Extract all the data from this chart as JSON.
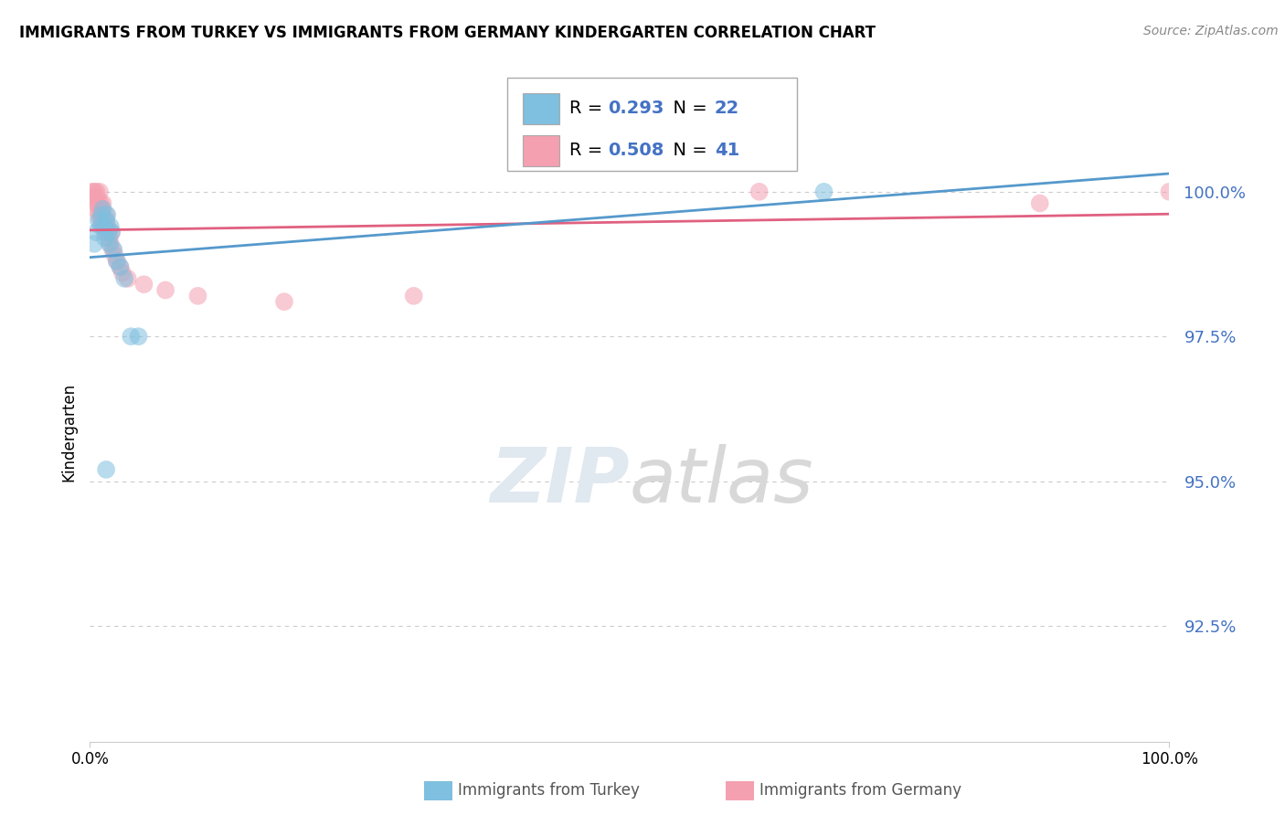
{
  "title": "IMMIGRANTS FROM TURKEY VS IMMIGRANTS FROM GERMANY KINDERGARTEN CORRELATION CHART",
  "source": "Source: ZipAtlas.com",
  "ylabel": "Kindergarten",
  "xlim": [
    0.0,
    100.0
  ],
  "ylim": [
    90.5,
    101.2
  ],
  "yticks": [
    92.5,
    95.0,
    97.5,
    100.0
  ],
  "ytick_labels": [
    "92.5%",
    "95.0%",
    "97.5%",
    "100.0%"
  ],
  "legend_blue_label": "Immigrants from Turkey",
  "legend_pink_label": "Immigrants from Germany",
  "R_blue": "0.293",
  "N_blue": "22",
  "R_pink": "0.508",
  "N_pink": "41",
  "blue_color": "#7fbfdf",
  "pink_color": "#f4a0b0",
  "blue_line_color": "#5599cc",
  "pink_line_color": "#e06080",
  "watermark_zip": "ZIP",
  "watermark_atlas": "atlas",
  "turkey_x": [
    0.4,
    0.6,
    0.8,
    1.0,
    1.1,
    1.2,
    1.3,
    1.4,
    1.5,
    1.6,
    1.7,
    1.8,
    1.9,
    2.0,
    2.2,
    2.5,
    2.8,
    3.2,
    3.8,
    4.5,
    1.5,
    68.0
  ],
  "turkey_y": [
    99.1,
    99.3,
    99.5,
    99.4,
    99.6,
    99.7,
    99.4,
    99.2,
    99.5,
    99.6,
    99.3,
    99.1,
    99.4,
    99.3,
    99.0,
    98.8,
    98.7,
    98.5,
    97.5,
    97.5,
    95.2,
    100.0
  ],
  "germany_x": [
    0.2,
    0.3,
    0.4,
    0.5,
    0.5,
    0.6,
    0.6,
    0.7,
    0.7,
    0.8,
    0.9,
    0.9,
    1.0,
    1.0,
    1.1,
    1.1,
    1.2,
    1.2,
    1.3,
    1.4,
    1.5,
    1.5,
    1.6,
    1.7,
    1.8,
    1.9,
    2.0,
    2.1,
    2.3,
    2.5,
    2.8,
    3.0,
    3.5,
    5.0,
    7.0,
    10.0,
    18.0,
    30.0,
    62.0,
    88.0,
    100.0
  ],
  "germany_y": [
    100.0,
    99.9,
    100.0,
    99.8,
    99.9,
    99.7,
    100.0,
    99.8,
    99.9,
    99.6,
    99.7,
    100.0,
    99.5,
    99.8,
    99.6,
    99.7,
    99.5,
    99.8,
    99.4,
    99.3,
    99.5,
    99.6,
    99.4,
    99.3,
    99.2,
    99.1,
    99.3,
    99.0,
    98.9,
    98.8,
    98.7,
    98.6,
    98.5,
    98.4,
    98.3,
    98.2,
    98.1,
    98.2,
    100.0,
    99.8,
    100.0
  ]
}
